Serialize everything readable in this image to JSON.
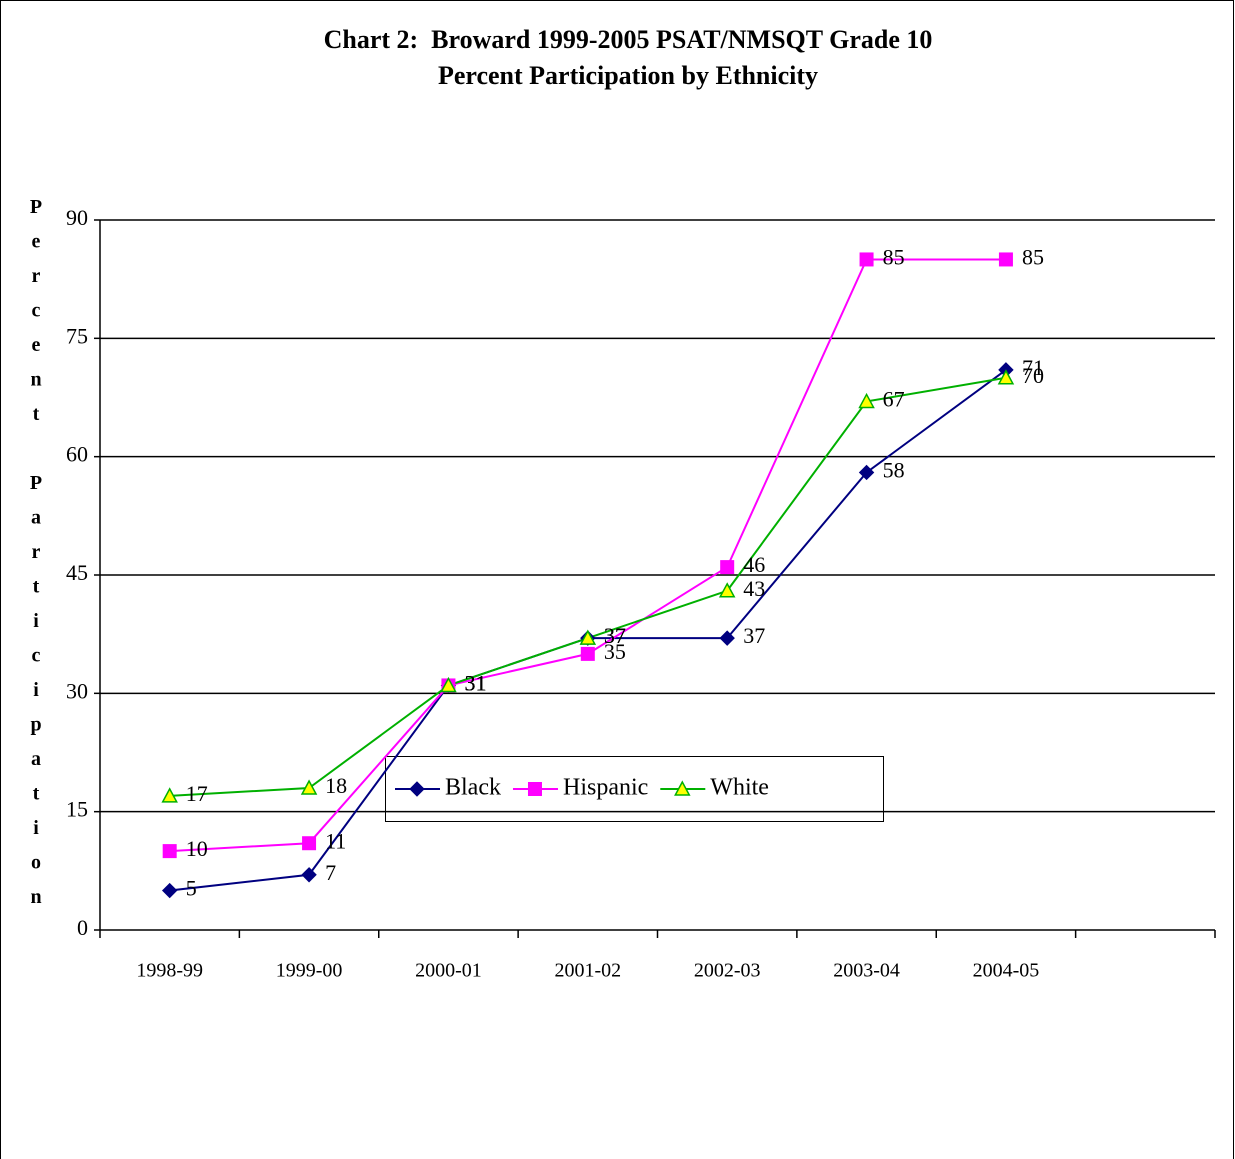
{
  "chart_data": {
    "type": "line",
    "title": "Chart 2:  Broward 1999-2005 PSAT/NMSQT Grade 10",
    "subtitle": "Percent Participation by Ethnicity",
    "y_label": "Percent Participation",
    "categories": [
      "1998-99",
      "1999-00",
      "2000-01",
      "2001-02",
      "2002-03",
      "2003-04",
      "2004-05",
      null
    ],
    "series": [
      {
        "name": "Black",
        "color": "#000080",
        "marker": "diamond",
        "values": [
          5,
          7,
          31,
          37,
          37,
          58,
          71,
          null
        ]
      },
      {
        "name": "Hispanic",
        "color": "#ff00ff",
        "marker": "square",
        "values": [
          10,
          11,
          31,
          35,
          46,
          85,
          85,
          null
        ]
      },
      {
        "name": "White",
        "color": "#00b000",
        "marker": "triangle",
        "values": [
          17,
          18,
          31,
          37,
          43,
          67,
          70,
          null
        ]
      }
    ],
    "ylim": [
      0,
      90
    ],
    "yticks": [
      0,
      15,
      30,
      45,
      60,
      75,
      90
    ],
    "grid": true,
    "legend": "bottom"
  }
}
